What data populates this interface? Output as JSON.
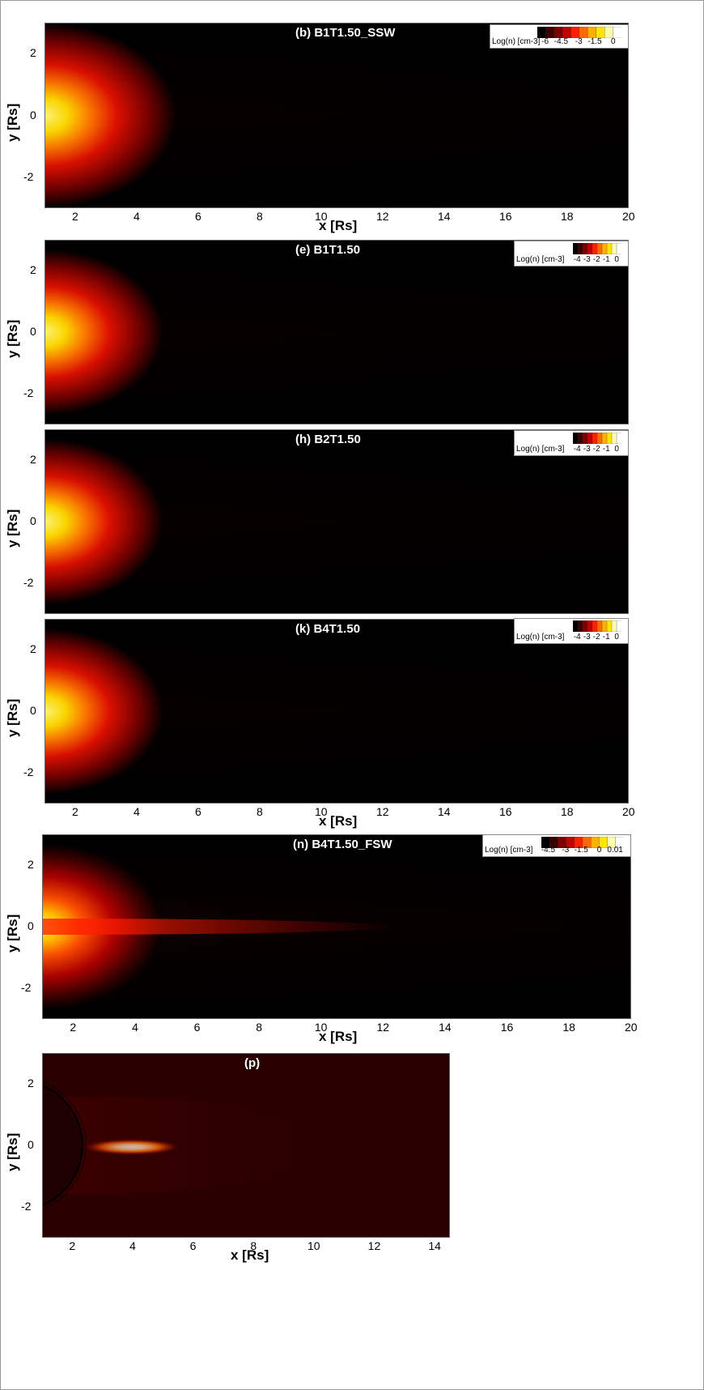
{
  "chart_data": [
    {
      "type": "heatmap",
      "title": "(b) B1T1.50_SSW",
      "xlabel": "x [Rs]",
      "ylabel": "y [Rs]",
      "xlim": [
        1,
        20
      ],
      "ylim": [
        -3,
        3
      ],
      "xticks": [
        "2",
        "4",
        "6",
        "8",
        "10",
        "12",
        "14",
        "16",
        "18",
        "20"
      ],
      "yticks": [
        "2",
        "0",
        "-2"
      ],
      "colorbar_label": "Log(n) [cm-3]",
      "colorbar_ticks": [
        "-6",
        "-4.5",
        "-3",
        "-1.5",
        "0"
      ],
      "show_xaxis": true
    },
    {
      "type": "heatmap",
      "title": "(e) B1T1.50",
      "xlabel": "",
      "ylabel": "y [Rs]",
      "xlim": [
        1,
        20
      ],
      "ylim": [
        -3,
        3
      ],
      "xticks": [],
      "yticks": [
        "2",
        "0",
        "-2"
      ],
      "colorbar_label": "Log(n) [cm-3]",
      "colorbar_ticks": [
        "-4",
        "-3",
        "-2",
        "-1",
        "0"
      ],
      "show_xaxis": false
    },
    {
      "type": "heatmap",
      "title": "(h) B2T1.50",
      "xlabel": "",
      "ylabel": "y [Rs]",
      "xlim": [
        1,
        20
      ],
      "ylim": [
        -3,
        3
      ],
      "xticks": [],
      "yticks": [
        "2",
        "0",
        "-2"
      ],
      "colorbar_label": "Log(n) [cm-3]",
      "colorbar_ticks": [
        "-4",
        "-3",
        "-2",
        "-1",
        "0"
      ],
      "show_xaxis": false
    },
    {
      "type": "heatmap",
      "title": "(k) B4T1.50",
      "xlabel": "x [Rs]",
      "ylabel": "y [Rs]",
      "xlim": [
        1,
        20
      ],
      "ylim": [
        -3,
        3
      ],
      "xticks": [
        "2",
        "4",
        "6",
        "8",
        "10",
        "12",
        "14",
        "16",
        "18",
        "20"
      ],
      "yticks": [
        "2",
        "0",
        "-2"
      ],
      "colorbar_label": "Log(n) [cm-3]",
      "colorbar_ticks": [
        "-4",
        "-3",
        "-2",
        "-1",
        "0"
      ],
      "show_xaxis": true
    },
    {
      "type": "heatmap",
      "title": "(n) B4T1.50_FSW",
      "xlabel": "x [Rs]",
      "ylabel": "y [Rs]",
      "xlim": [
        1,
        20
      ],
      "ylim": [
        -3,
        3
      ],
      "xticks": [
        "2",
        "4",
        "6",
        "8",
        "10",
        "12",
        "14",
        "16",
        "18",
        "20"
      ],
      "yticks": [
        "2",
        "0",
        "-2"
      ],
      "colorbar_label": "Log(n) [cm-3]",
      "colorbar_ticks": [
        "-4.5",
        "-3",
        "-1.5",
        "0",
        "0.01"
      ],
      "show_xaxis": true
    },
    {
      "type": "heatmap",
      "title": "(p)",
      "xlabel": "x [Rs]",
      "ylabel": "y [Rs]",
      "xlim": [
        1,
        14.5
      ],
      "ylim": [
        -3,
        3
      ],
      "xticks": [
        "2",
        "4",
        "6",
        "8",
        "10",
        "12",
        "14"
      ],
      "yticks": [
        "2",
        "0",
        "-2"
      ],
      "colorbar_label": "",
      "colorbar_ticks": [],
      "show_xaxis": true
    }
  ],
  "colors": {
    "colormap": [
      "#000000",
      "#3a0000",
      "#7a0000",
      "#c00000",
      "#ff2000",
      "#ff6a00",
      "#ffb000",
      "#ffe600",
      "#ffffb0",
      "#ffffff"
    ],
    "background": "#ffffff"
  }
}
